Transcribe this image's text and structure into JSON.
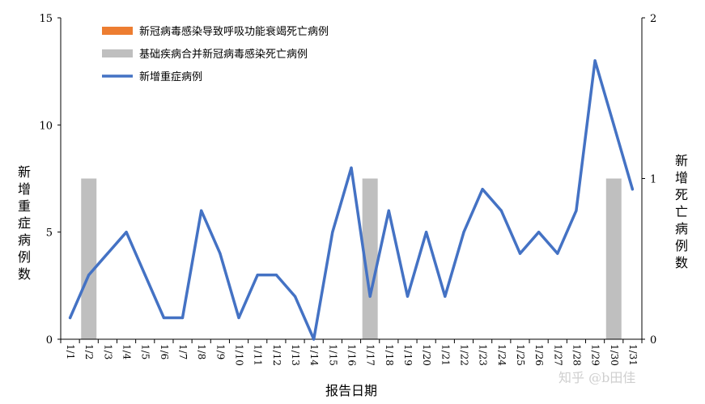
{
  "chart_data": {
    "type": "bar+line",
    "categories": [
      "1/1",
      "1/2",
      "1/3",
      "1/4",
      "1/5",
      "1/6",
      "1/7",
      "1/8",
      "1/9",
      "1/10",
      "1/11",
      "1/12",
      "1/13",
      "1/14",
      "1/15",
      "1/16",
      "1/17",
      "1/18",
      "1/19",
      "1/20",
      "1/21",
      "1/22",
      "1/23",
      "1/24",
      "1/25",
      "1/26",
      "1/27",
      "1/28",
      "1/29",
      "1/30",
      "1/31"
    ],
    "xlabel": "报告日期",
    "ylabel_left": "新增重症病例数",
    "ylabel_right": "新增死亡病例数",
    "ylim_left": [
      0,
      15
    ],
    "ylim_right": [
      0,
      2
    ],
    "yticks_left": [
      0,
      5,
      10,
      15
    ],
    "yticks_right": [
      0,
      1,
      2
    ],
    "grid": false,
    "legend_position": "top-left",
    "series": [
      {
        "name": "新冠病毒感染导致呼吸功能衰竭死亡病例",
        "type": "bar",
        "axis": "right",
        "color": "#ED7D31",
        "values": [
          0,
          0,
          0,
          0,
          0,
          0,
          0,
          0,
          0,
          0,
          0,
          0,
          0,
          0,
          0,
          0,
          0,
          0,
          0,
          0,
          0,
          0,
          0,
          0,
          0,
          0,
          0,
          0,
          0,
          0,
          0
        ]
      },
      {
        "name": "基础疾病合并新冠病毒感染死亡病例",
        "type": "bar",
        "axis": "right",
        "color": "#BFBFBF",
        "values": [
          0,
          1,
          0,
          0,
          0,
          0,
          0,
          0,
          0,
          0,
          0,
          0,
          0,
          0,
          0,
          0,
          1,
          0,
          0,
          0,
          0,
          0,
          0,
          0,
          0,
          0,
          0,
          0,
          0,
          1,
          0
        ]
      },
      {
        "name": "新增重症病例",
        "type": "line",
        "axis": "left",
        "color": "#4472C4",
        "values": [
          1,
          3,
          4,
          5,
          3,
          1,
          1,
          6,
          4,
          1,
          3,
          3,
          2,
          0,
          5,
          8,
          2,
          6,
          2,
          5,
          2,
          5,
          7,
          6,
          4,
          5,
          4,
          6,
          13,
          10,
          7
        ]
      }
    ]
  },
  "watermark": "知乎 @b田佳"
}
